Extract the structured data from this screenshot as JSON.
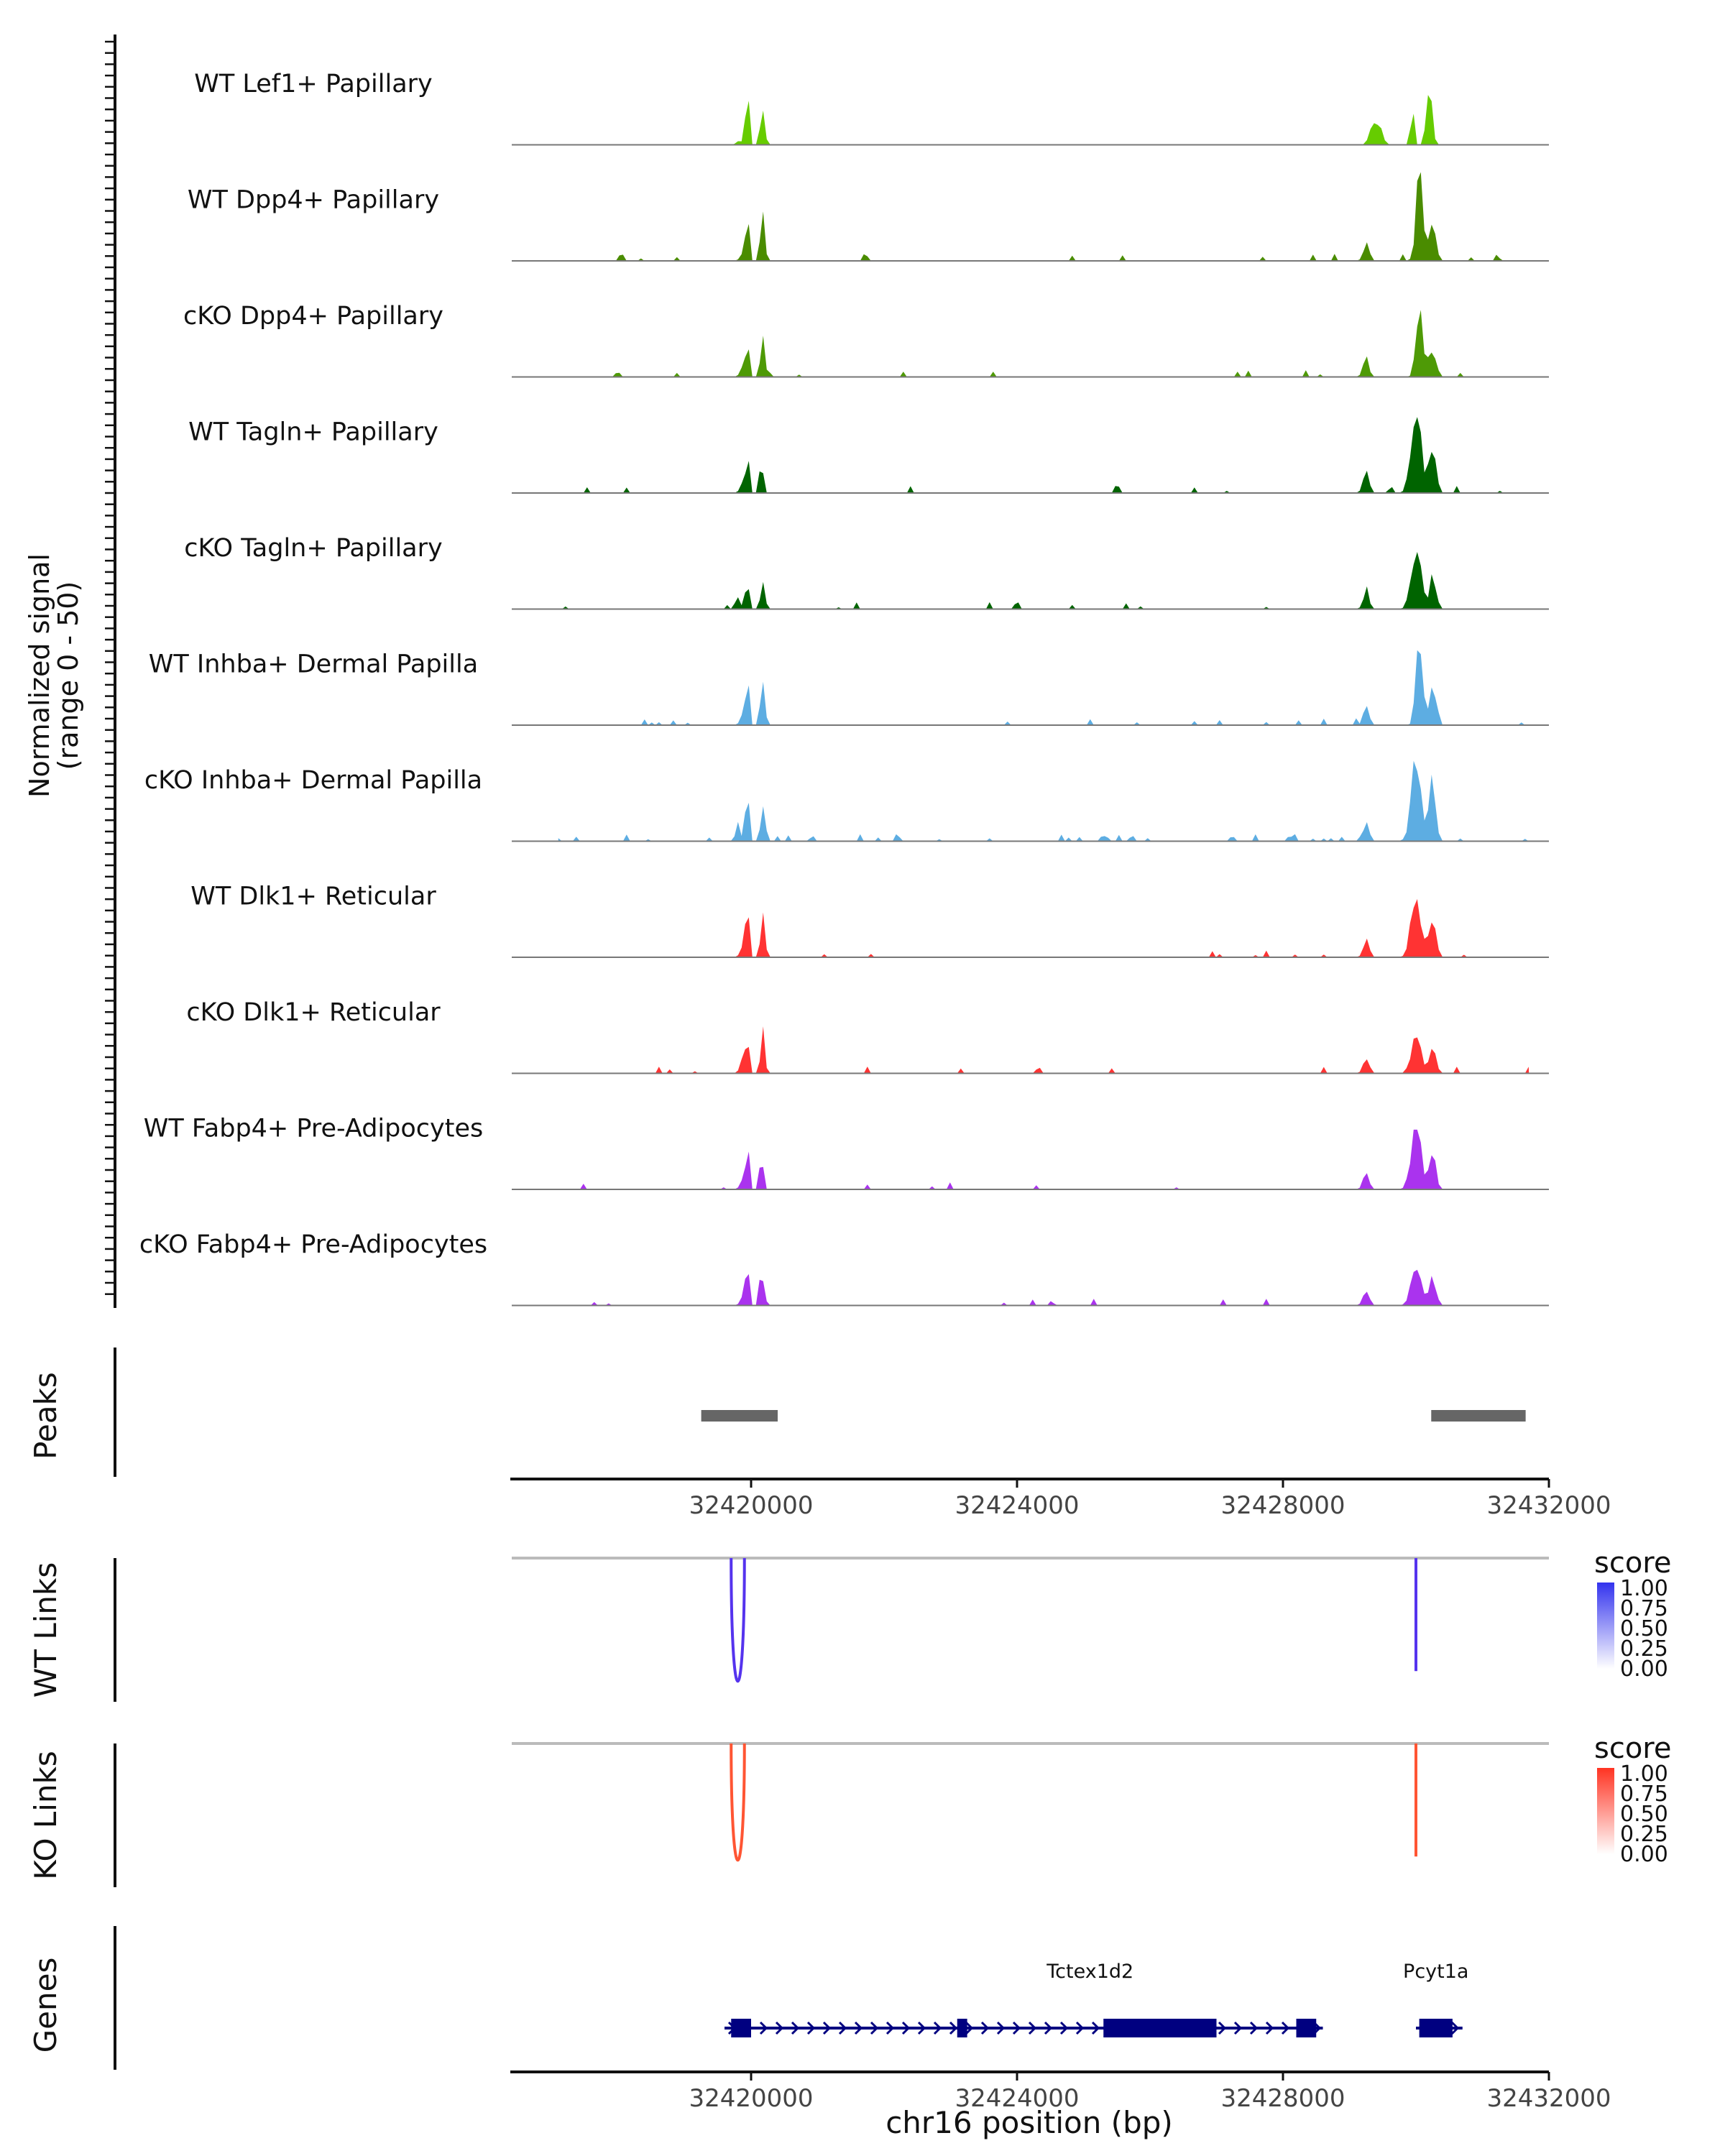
{
  "chart_data": {
    "type": "coverage-track",
    "title": "",
    "xlabel": "chr16 position (bp)",
    "ylabel_line1": "Normalized signal",
    "ylabel_line2": "(range 0 - 50)",
    "y_range": [
      0,
      50
    ],
    "xlim": [
      32416400,
      32432000
    ],
    "x_ticks": [
      32420000,
      32424000,
      32428000,
      32432000
    ],
    "x_tick_labels": [
      "32420000",
      "32424000",
      "32428000",
      "32432000"
    ],
    "tracks": [
      {
        "name": "WT Lef1+ Papillary",
        "color": "#66CC00",
        "peaks": [
          [
            32419650,
            32420000,
            6,
            0.06
          ],
          [
            32419880,
            32420000,
            4,
            0.85
          ],
          [
            32420000,
            32420350,
            8,
            0.5
          ],
          [
            32429000,
            32429800,
            8,
            0.3
          ],
          [
            32429880,
            32430000,
            5,
            0.93
          ],
          [
            32430000,
            32430400,
            7,
            0.7
          ]
        ],
        "noise": 0.01,
        "seed": 1
      },
      {
        "name": "WT Dpp4+ Papillary",
        "color": "#4A8C00",
        "peaks": [
          [
            32419700,
            32420000,
            8,
            0.1
          ],
          [
            32419880,
            32420000,
            4,
            0.75
          ],
          [
            32420000,
            32420350,
            8,
            0.6
          ],
          [
            32429000,
            32429500,
            8,
            0.2
          ],
          [
            32429800,
            32430300,
            7,
            0.95
          ],
          [
            32430000,
            32430500,
            7,
            0.5
          ]
        ],
        "noise": 0.04,
        "seed": 2
      },
      {
        "name": "cKO Dpp4+ Papillary",
        "color": "#4E9A06",
        "peaks": [
          [
            32419700,
            32420000,
            8,
            0.1
          ],
          [
            32419880,
            32420000,
            4,
            0.62
          ],
          [
            32420000,
            32420350,
            8,
            0.45
          ],
          [
            32429000,
            32429500,
            8,
            0.2
          ],
          [
            32429800,
            32430300,
            7,
            0.7
          ],
          [
            32430000,
            32430500,
            7,
            0.35
          ]
        ],
        "noise": 0.05,
        "seed": 3
      },
      {
        "name": "WT Tagln+ Papillary",
        "color": "#006400",
        "peaks": [
          [
            32419700,
            32420000,
            8,
            0.1
          ],
          [
            32419880,
            32420000,
            4,
            0.6
          ],
          [
            32420000,
            32420300,
            8,
            0.45
          ],
          [
            32429000,
            32429500,
            8,
            0.25
          ],
          [
            32429700,
            32430300,
            6,
            1.0
          ],
          [
            32430000,
            32430500,
            7,
            0.6
          ]
        ],
        "noise": 0.05,
        "seed": 4
      },
      {
        "name": "cKO Tagln+ Papillary",
        "color": "#006400",
        "peaks": [
          [
            32419600,
            32420000,
            8,
            0.15
          ],
          [
            32419880,
            32420000,
            4,
            0.5
          ],
          [
            32420000,
            32420350,
            8,
            0.35
          ],
          [
            32429000,
            32429500,
            8,
            0.2
          ],
          [
            32429700,
            32430300,
            6,
            0.7
          ],
          [
            32430000,
            32430500,
            7,
            0.35
          ]
        ],
        "noise": 0.05,
        "seed": 5
      },
      {
        "name": "WT Inhba+ Dermal Papilla",
        "color": "#5DADE2",
        "peaks": [
          [
            32419700,
            32420000,
            8,
            0.1
          ],
          [
            32419880,
            32420000,
            4,
            0.8
          ],
          [
            32420000,
            32420350,
            8,
            0.6
          ],
          [
            32429000,
            32429500,
            8,
            0.2
          ],
          [
            32429800,
            32430300,
            7,
            0.9
          ],
          [
            32430000,
            32430500,
            7,
            0.5
          ]
        ],
        "noise": 0.04,
        "seed": 6
      },
      {
        "name": "cKO Inhba+ Dermal Papilla",
        "color": "#5DADE2",
        "peaks": [
          [
            32419600,
            32420000,
            8,
            0.2
          ],
          [
            32419880,
            32420000,
            4,
            0.95
          ],
          [
            32420000,
            32420350,
            8,
            0.5
          ],
          [
            32429000,
            32429500,
            8,
            0.2
          ],
          [
            32429700,
            32430300,
            6,
            0.9
          ],
          [
            32430000,
            32430500,
            7,
            0.6
          ]
        ],
        "noise": 0.12,
        "seed": 7
      },
      {
        "name": "WT Dlk1+ Reticular",
        "color": "#FF3333",
        "peaks": [
          [
            32419700,
            32420000,
            8,
            0.1
          ],
          [
            32419880,
            32420000,
            4,
            0.78
          ],
          [
            32420000,
            32420350,
            8,
            0.55
          ],
          [
            32429000,
            32429500,
            8,
            0.2
          ],
          [
            32429700,
            32430300,
            6,
            0.75
          ],
          [
            32430000,
            32430500,
            7,
            0.45
          ]
        ],
        "noise": 0.03,
        "seed": 8
      },
      {
        "name": "cKO Dlk1+ Reticular",
        "color": "#FF3333",
        "peaks": [
          [
            32419700,
            32420000,
            8,
            0.15
          ],
          [
            32419880,
            32420000,
            4,
            0.72
          ],
          [
            32420000,
            32420350,
            8,
            0.45
          ],
          [
            32429000,
            32429500,
            8,
            0.2
          ],
          [
            32429700,
            32430300,
            6,
            0.45
          ],
          [
            32430000,
            32430500,
            7,
            0.35
          ]
        ],
        "noise": 0.05,
        "seed": 9
      },
      {
        "name": "WT Fabp4+ Pre-Adipocytes",
        "color": "#AA33EE",
        "peaks": [
          [
            32419700,
            32420000,
            8,
            0.1
          ],
          [
            32419880,
            32420000,
            4,
            0.75
          ],
          [
            32420000,
            32420300,
            8,
            0.45
          ],
          [
            32429000,
            32429500,
            8,
            0.2
          ],
          [
            32429700,
            32430300,
            6,
            0.8
          ],
          [
            32430000,
            32430500,
            7,
            0.4
          ]
        ],
        "noise": 0.03,
        "seed": 10
      },
      {
        "name": "cKO Fabp4+ Pre-Adipocytes",
        "color": "#AA33EE",
        "peaks": [
          [
            32419700,
            32420000,
            8,
            0.1
          ],
          [
            32419880,
            32420000,
            4,
            0.85
          ],
          [
            32420000,
            32420300,
            8,
            0.45
          ],
          [
            32429000,
            32429500,
            8,
            0.2
          ],
          [
            32429700,
            32430300,
            6,
            0.5
          ],
          [
            32430000,
            32430500,
            7,
            0.3
          ]
        ],
        "noise": 0.04,
        "seed": 11
      }
    ],
    "peaks_track": {
      "label": "Peaks",
      "color": "#666666",
      "regions": [
        [
          32419250,
          32420400
        ],
        [
          32430230,
          32431650
        ]
      ]
    },
    "links_tracks": [
      {
        "label": "WT Links",
        "color": "#5533EE",
        "links": [
          [
            32419700,
            32419900,
            0.95
          ],
          [
            32430000,
            32430000,
            0.85
          ]
        ],
        "legend": {
          "title": "score",
          "low": "#FFFFFF",
          "high": "#3333EE",
          "ticks": [
            "1.00",
            "0.75",
            "0.50",
            "0.25",
            "0.00"
          ]
        }
      },
      {
        "label": "KO Links",
        "color": "#FF5533",
        "links": [
          [
            32419700,
            32419900,
            0.9
          ],
          [
            32430000,
            32430000,
            0.85
          ]
        ],
        "legend": {
          "title": "score",
          "low": "#FFFFFF",
          "high": "#FF3322",
          "ticks": [
            "1.00",
            "0.75",
            "0.50",
            "0.25",
            "0.00"
          ]
        }
      }
    ],
    "genes_track": {
      "label": "Genes",
      "color": "#000080",
      "genes": [
        {
          "name": "Tctex1d2",
          "start": 32419600,
          "end": 32428600,
          "exons": [
            [
              32419700,
              32420000
            ],
            [
              32423100,
              32423250
            ],
            [
              32425300,
              32427000
            ],
            [
              32428200,
              32428500
            ]
          ],
          "label_x": 32425100
        },
        {
          "name": "Pcyt1a",
          "start": 32430000,
          "end": 32430700,
          "exons": [
            [
              32430050,
              32430550
            ]
          ],
          "label_x": 32430300
        }
      ]
    }
  }
}
